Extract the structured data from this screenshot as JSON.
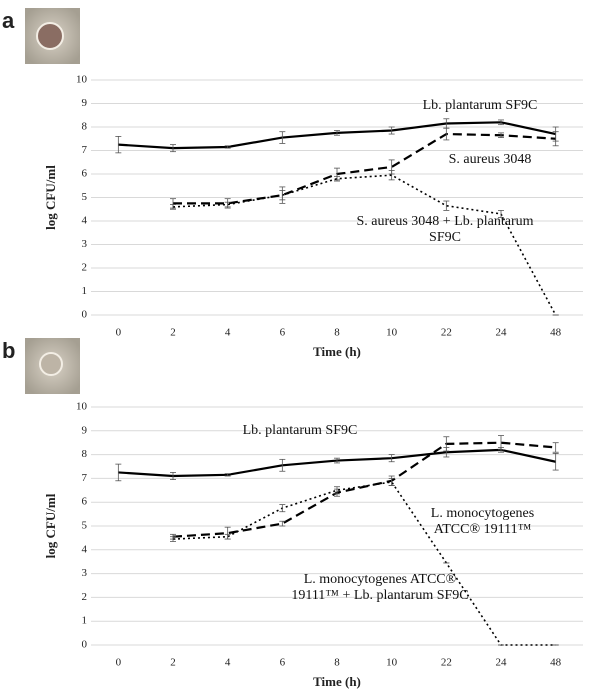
{
  "chart_data": [
    {
      "type": "line",
      "panel_label": "a",
      "xlabel": "Time (h)",
      "ylabel": "log CFU/ml",
      "categories": [
        "0",
        "2",
        "4",
        "6",
        "8",
        "10",
        "22",
        "24",
        "48"
      ],
      "ylim": [
        0,
        10
      ],
      "yticks": [
        0,
        1,
        2,
        3,
        4,
        5,
        6,
        7,
        8,
        9,
        10
      ],
      "grid": true,
      "series": [
        {
          "name": "Lb. plantarum SF9C",
          "color": "#000000",
          "line_style": "solid",
          "values": [
            7.25,
            7.1,
            7.15,
            7.55,
            7.75,
            7.85,
            8.15,
            8.2,
            7.7
          ],
          "errors": [
            0.35,
            0.15,
            0.05,
            0.25,
            0.1,
            0.15,
            0.2,
            0.1,
            0.3
          ]
        },
        {
          "name": "S. aureus 3048",
          "color": "#000000",
          "line_style": "dashed",
          "values": [
            null,
            4.75,
            4.75,
            5.1,
            6.0,
            6.3,
            7.7,
            7.65,
            7.5
          ],
          "errors": [
            null,
            0.2,
            0.2,
            0.35,
            0.25,
            0.3,
            0.25,
            0.1,
            0.3
          ]
        },
        {
          "name": "S. aureus 3048 + Lb. plantarum SF9C",
          "color": "#000000",
          "line_style": "dotted",
          "values": [
            null,
            4.6,
            4.7,
            5.1,
            5.8,
            5.95,
            4.65,
            4.3,
            0
          ],
          "errors": [
            null,
            0.1,
            0.1,
            0.2,
            0.1,
            0.2,
            0.2,
            0.15,
            0
          ]
        }
      ]
    },
    {
      "type": "line",
      "panel_label": "b",
      "xlabel": "Time (h)",
      "ylabel": "log CFU/ml",
      "categories": [
        "0",
        "2",
        "4",
        "6",
        "8",
        "10",
        "22",
        "24",
        "48"
      ],
      "ylim": [
        0,
        10
      ],
      "yticks": [
        0,
        1,
        2,
        3,
        4,
        5,
        6,
        7,
        8,
        9,
        10
      ],
      "grid": true,
      "series": [
        {
          "name": "Lb. plantarum SF9C",
          "color": "#000000",
          "line_style": "solid",
          "values": [
            7.25,
            7.1,
            7.15,
            7.55,
            7.75,
            7.85,
            8.1,
            8.2,
            7.7
          ],
          "errors": [
            0.35,
            0.15,
            0.05,
            0.25,
            0.1,
            0.15,
            0.2,
            0.1,
            0.35
          ]
        },
        {
          "name": "L. monocytogenes ATCC® 19111™",
          "color": "#000000",
          "line_style": "dashed",
          "values": [
            null,
            4.55,
            4.7,
            5.1,
            6.4,
            6.9,
            8.45,
            8.5,
            8.3
          ],
          "errors": [
            null,
            0.1,
            0.25,
            0.1,
            0.15,
            0.2,
            0.3,
            0.3,
            0.2
          ]
        },
        {
          "name": "L. monocytogenes ATCC® 19111™ + Lb. plantarum SF9C",
          "color": "#000000",
          "line_style": "dotted",
          "values": [
            null,
            4.45,
            4.55,
            5.75,
            6.5,
            6.85,
            3.45,
            0,
            0
          ],
          "errors": [
            null,
            0.1,
            0.1,
            0.15,
            0.15,
            0.15,
            0,
            0,
            0
          ]
        }
      ]
    }
  ]
}
